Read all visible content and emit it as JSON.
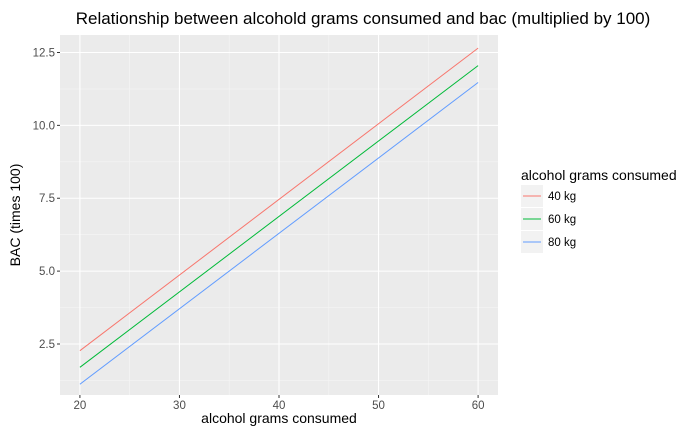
{
  "chart_data": {
    "type": "line",
    "title": "Relationship between alcohold grams consumed and bac (multiplied by 100)",
    "xlabel": "alcohol grams consumed",
    "ylabel": "BAC (times 100)",
    "xlim": [
      18,
      62
    ],
    "ylim": [
      0.75,
      13.1
    ],
    "x_ticks": [
      20,
      30,
      40,
      50,
      60
    ],
    "y_ticks": [
      2.5,
      5.0,
      7.5,
      10.0,
      12.5
    ],
    "x_tick_labels": [
      "20",
      "30",
      "40",
      "50",
      "60"
    ],
    "y_tick_labels": [
      "2.5",
      "5.0",
      "7.5",
      "10.0",
      "12.5"
    ],
    "grid": true,
    "legend": {
      "title": "alcohol grams consumed",
      "placement": "right"
    },
    "series": [
      {
        "name": "40 kg",
        "color": "#f8766d",
        "x": [
          20,
          60
        ],
        "y": [
          2.27,
          12.65
        ]
      },
      {
        "name": "60 kg",
        "color": "#00ba38",
        "x": [
          20,
          60
        ],
        "y": [
          1.7,
          12.05
        ]
      },
      {
        "name": "80 kg",
        "color": "#619cff",
        "x": [
          20,
          60
        ],
        "y": [
          1.12,
          11.47
        ]
      }
    ]
  }
}
